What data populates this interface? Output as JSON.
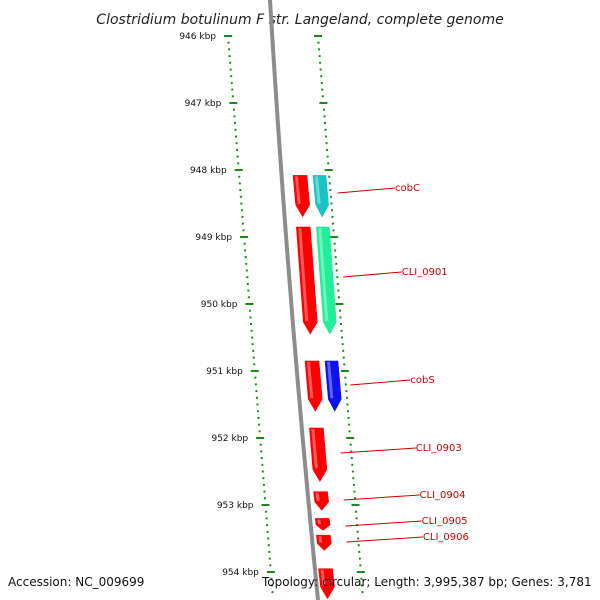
{
  "title": "Clostridium botulinum F str. Langeland, complete genome",
  "footer": {
    "accession": "Accession: NC_009699",
    "topology": "Topology: circular; Length: 3,995,387 bp; Genes: 3,781"
  },
  "colors": {
    "tick": "#1a8a1a",
    "backbone": "#8c8c8c",
    "gene_forward": "#ff0000",
    "label": "#cc0000",
    "cobC": "#19c3c3",
    "CLI_0901": "#22ee99",
    "cobS": "#1010ee"
  },
  "ticks": [
    {
      "kbp": 946,
      "label": "946 kbp"
    },
    {
      "kbp": 947,
      "label": "947 kbp"
    },
    {
      "kbp": 948,
      "label": "948 kbp"
    },
    {
      "kbp": 949,
      "label": "949 kbp"
    },
    {
      "kbp": 950,
      "label": "950 kbp"
    },
    {
      "kbp": 951,
      "label": "951 kbp"
    },
    {
      "kbp": 952,
      "label": "952 kbp"
    },
    {
      "kbp": 953,
      "label": "953 kbp"
    },
    {
      "kbp": 954,
      "label": "954 kbp"
    }
  ],
  "genes": [
    {
      "name": "cobC",
      "label": "cobC",
      "start_kbp": 948.08,
      "end_kbp": 948.7,
      "color": "#19c3c3"
    },
    {
      "name": "CLI_0901",
      "label": "CLI_0901",
      "start_kbp": 948.85,
      "end_kbp": 950.45,
      "color": "#22ee99"
    },
    {
      "name": "cobS",
      "label": "cobS",
      "start_kbp": 950.85,
      "end_kbp": 951.6,
      "color": "#1010ee"
    },
    {
      "name": "CLI_0903",
      "label": "CLI_0903",
      "start_kbp": null,
      "end_kbp": null,
      "color": null
    },
    {
      "name": "CLI_0904",
      "label": "CLI_0904",
      "start_kbp": null,
      "end_kbp": null,
      "color": null
    },
    {
      "name": "CLI_0905",
      "label": "CLI_0905",
      "start_kbp": null,
      "end_kbp": null,
      "color": null
    },
    {
      "name": "CLI_0906",
      "label": "CLI_0906",
      "start_kbp": null,
      "end_kbp": null,
      "color": null
    }
  ],
  "cds": [
    {
      "start_kbp": 948.08,
      "end_kbp": 948.7
    },
    {
      "start_kbp": 948.85,
      "end_kbp": 950.45
    },
    {
      "start_kbp": 950.85,
      "end_kbp": 951.6
    },
    {
      "start_kbp": 951.85,
      "end_kbp": 952.65
    },
    {
      "start_kbp": 952.8,
      "end_kbp": 953.08
    },
    {
      "start_kbp": 953.2,
      "end_kbp": 953.38
    },
    {
      "start_kbp": 953.45,
      "end_kbp": 953.68
    },
    {
      "start_kbp": 953.95,
      "end_kbp": 954.4
    }
  ]
}
